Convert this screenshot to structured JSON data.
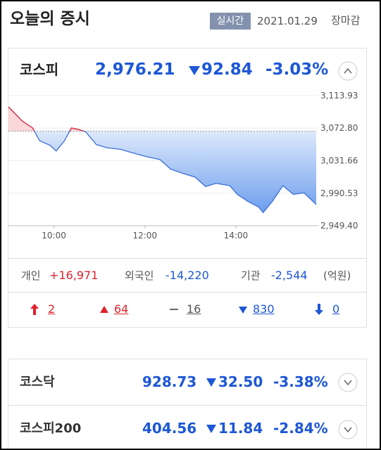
{
  "header": {
    "title": "오늘의 증시",
    "badge": "실시간",
    "date": "2021.01.29",
    "status": "장마감"
  },
  "kospi": {
    "name": "코스피",
    "value": "2,976.21",
    "change": "92.84",
    "rate": "-3.03%"
  },
  "chart_data": {
    "type": "line",
    "x": [
      "09:00",
      "09:09",
      "09:18",
      "09:32",
      "09:41",
      "09:55",
      "10:03",
      "10:14",
      "10:23",
      "10:33",
      "10:42",
      "10:56",
      "11:10",
      "11:28",
      "11:42",
      "12:01",
      "12:20",
      "12:34",
      "12:52",
      "13:06",
      "13:20",
      "13:34",
      "13:52",
      "14:02",
      "14:16",
      "14:30",
      "14:36",
      "14:48",
      "15:02",
      "15:16",
      "15:30",
      "15:46"
    ],
    "values": [
      3099.7,
      3091,
      3082,
      3073,
      3057,
      3051,
      3044,
      3057,
      3073,
      3071,
      3068,
      3052,
      3048,
      3046,
      3042,
      3037,
      3033,
      3021,
      3015,
      3011,
      2999,
      3003,
      3000,
      2989,
      2980,
      2973,
      2966,
      2980,
      3000,
      2989,
      2991,
      2976.21
    ],
    "color": "#3b6fd8",
    "up_color": "#e8283a",
    "xlim": [
      "09:00",
      "15:46"
    ],
    "xticks": [
      "10:00",
      "12:00",
      "14:00"
    ],
    "ylim": [
      2949.4,
      3113.93
    ],
    "yticks": [
      {
        "value": 2949.4,
        "label": "2,949.40"
      },
      {
        "value": 2990.53,
        "label": "2,990.53"
      },
      {
        "value": 3031.66,
        "label": "3,031.66"
      },
      {
        "value": 3072.8,
        "label": "3,072.80"
      },
      {
        "value": 3113.93,
        "label": "3,113.93"
      }
    ],
    "reference_line": 3069.05,
    "grid": true
  },
  "investors": [
    {
      "label": "개인",
      "value": "+16,971"
    },
    {
      "label": "외국인",
      "value": "-14,220"
    },
    {
      "label": "기관",
      "value": "-2,544"
    }
  ],
  "investors_unit": "(억원)",
  "breadth": [
    "2",
    "64",
    "16",
    "830",
    "0"
  ],
  "indices": [
    {
      "name": "코스닥",
      "value": "928.73",
      "change": "32.50",
      "rate": "-3.38%"
    },
    {
      "name": "코스피200",
      "value": "404.56",
      "change": "11.84",
      "rate": "-2.84%"
    }
  ]
}
